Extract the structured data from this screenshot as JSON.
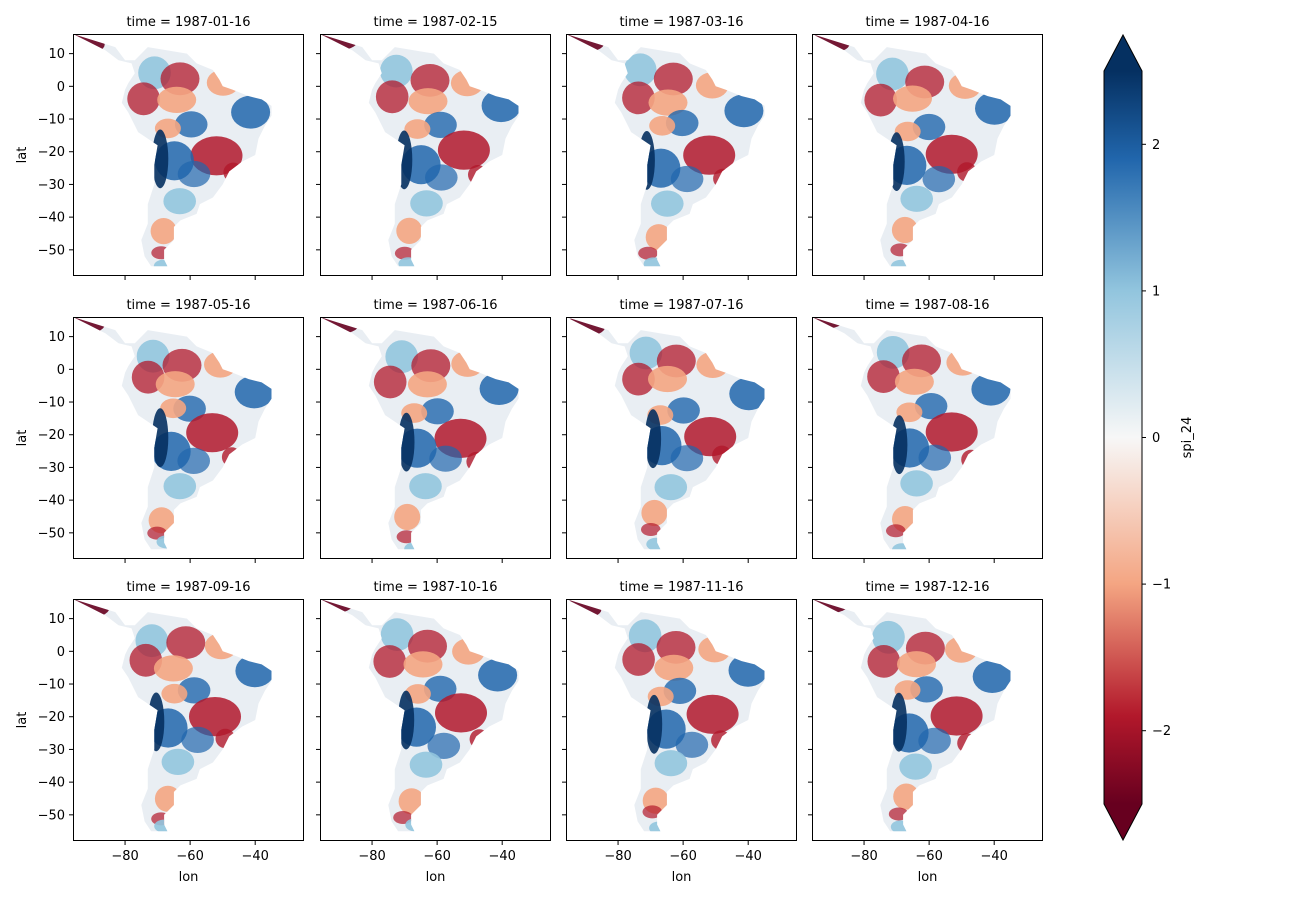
{
  "chart_data": {
    "type": "heatmap",
    "layout": {
      "rows": 3,
      "cols": 4
    },
    "panels": [
      {
        "title": "time = 1987-01-16",
        "time": "1987-01-16"
      },
      {
        "title": "time = 1987-02-15",
        "time": "1987-02-15"
      },
      {
        "title": "time = 1987-03-16",
        "time": "1987-03-16"
      },
      {
        "title": "time = 1987-04-16",
        "time": "1987-04-16"
      },
      {
        "title": "time = 1987-05-16",
        "time": "1987-05-16"
      },
      {
        "title": "time = 1987-06-16",
        "time": "1987-06-16"
      },
      {
        "title": "time = 1987-07-16",
        "time": "1987-07-16"
      },
      {
        "title": "time = 1987-08-16",
        "time": "1987-08-16"
      },
      {
        "title": "time = 1987-09-16",
        "time": "1987-09-16"
      },
      {
        "title": "time = 1987-10-16",
        "time": "1987-10-16"
      },
      {
        "title": "time = 1987-11-16",
        "time": "1987-11-16"
      },
      {
        "title": "time = 1987-12-16",
        "time": "1987-12-16"
      }
    ],
    "xlabel": "lon",
    "ylabel": "lat",
    "xlim": [
      -96,
      -25
    ],
    "ylim": [
      -58,
      16
    ],
    "xticks": [
      -80,
      -60,
      -40
    ],
    "xtick_labels": [
      "−80",
      "−60",
      "−40"
    ],
    "yticks": [
      10,
      0,
      -10,
      -20,
      -30,
      -40,
      -50
    ],
    "ytick_labels": [
      "10",
      "0",
      "−10",
      "−20",
      "−30",
      "−40",
      "−50"
    ],
    "colorbar": {
      "label": "spi_24",
      "colormap": "RdBu",
      "range": [
        -2.5,
        2.5
      ],
      "extend": "both",
      "ticks": [
        2,
        1,
        0,
        -1,
        -2
      ],
      "tick_labels": [
        "2",
        "1",
        "0",
        "−1",
        "−2"
      ]
    },
    "grid": false,
    "colors": {
      "blue_extreme": "#053061",
      "blue": "#2166ac",
      "light_blue": "#92c5de",
      "neutral": "#f7f7f7",
      "light_red": "#f4a582",
      "red": "#b2182b",
      "red_extreme": "#67001f"
    }
  }
}
